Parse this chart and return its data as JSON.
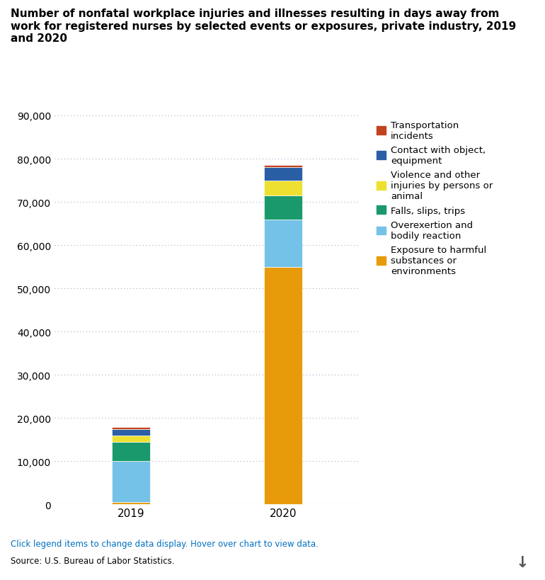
{
  "title": "Number of nonfatal workplace injuries and illnesses resulting in days away from\nwork for registered nurses by selected events or exposures, private industry, 2019\nand 2020",
  "categories": [
    "2019",
    "2020"
  ],
  "series": [
    {
      "label": "Exposure to harmful\nsubstances or\nenvironments",
      "color": "#E89B0A",
      "values": [
        500,
        55000
      ]
    },
    {
      "label": "Overexertion and\nbodily reaction",
      "color": "#75C2E8",
      "values": [
        9500,
        11000
      ]
    },
    {
      "label": "Falls, slips, trips",
      "color": "#1A9A6C",
      "values": [
        4500,
        5500
      ]
    },
    {
      "label": "Violence and other\ninjuries by persons or\nanimal",
      "color": "#EDE030",
      "values": [
        1500,
        3500
      ]
    },
    {
      "label": "Contact with object,\nequipment",
      "color": "#2B5FA5",
      "values": [
        1500,
        3000
      ]
    },
    {
      "label": "Transportation\nincidents",
      "color": "#C0431F",
      "values": [
        500,
        500
      ]
    }
  ],
  "ylim": [
    0,
    90000
  ],
  "yticks": [
    0,
    10000,
    20000,
    30000,
    40000,
    50000,
    60000,
    70000,
    80000,
    90000
  ],
  "footer_line1": "Click legend items to change data display. Hover over chart to view data.",
  "footer_line2": "Source: U.S. Bureau of Labor Statistics.",
  "footer_color": "#0070C0",
  "source_color": "#000000",
  "background_color": "#FFFFFF",
  "bar_width": 0.25,
  "title_fontsize": 11,
  "tick_fontsize": 10,
  "legend_fontsize": 9.5
}
